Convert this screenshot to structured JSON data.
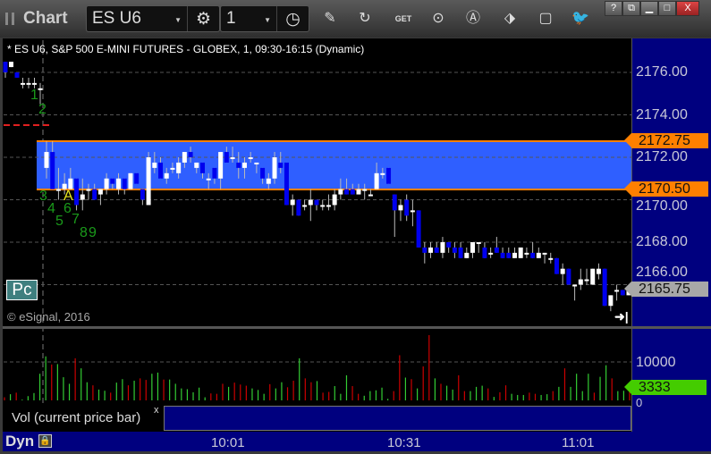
{
  "window": {
    "title": "Chart",
    "symbol": "ES U6",
    "interval": "1",
    "controls": [
      "?",
      "restore",
      "minimize",
      "maximize",
      "close"
    ]
  },
  "toolbar": {
    "icons": [
      "settings-gear-icon",
      "clock-icon",
      "pencil-icon",
      "refresh-icon",
      "get-icon",
      "play-icon",
      "alert-icon",
      "link-icon",
      "comment-icon",
      "twitter-icon"
    ]
  },
  "chart": {
    "header": "* ES U6, S&P 500 E-MINI FUTURES - GLOBEX, 1, 09:30-16:15 (Dynamic)",
    "price_labels": [
      "2176.00",
      "2174.00",
      "2172.00",
      "2170.00",
      "2168.00",
      "2166.00"
    ],
    "tags": {
      "upper": "2172.75",
      "lower": "2170.50",
      "last": "2165.75"
    },
    "colors": {
      "up": "#ffffff",
      "down": "#0000ee",
      "band": "#2f5fff",
      "band_line": "#ff8000",
      "vol_up": "#33cc33",
      "vol_down": "#cc0000",
      "axis": "#00007f"
    },
    "pc_label": "Pc",
    "copyright": "© eSignal, 2016",
    "tpo_letters": [
      "1",
      "2",
      "3",
      "4",
      "5",
      "6",
      "7",
      "8",
      "9",
      "A"
    ],
    "candles_pre": [
      [
        2176.5,
        2176.5,
        2175.75,
        2176
      ],
      [
        2176.25,
        2176.5,
        2176.25,
        2176.5
      ],
      [
        2176,
        2176,
        2175.75,
        2175.75
      ],
      [
        2175.5,
        2175.75,
        2175.25,
        2175.5
      ],
      [
        2175.5,
        2175.75,
        2175.25,
        2175.5
      ],
      [
        2175.5,
        2175.75,
        2175.25,
        2175.5
      ],
      [
        2175.25,
        2175.5,
        2174.5,
        2175.25
      ]
    ],
    "candles": [
      [
        2171.5,
        2172.75,
        2171,
        2172.25
      ],
      [
        2172.25,
        2172.75,
        2170.5,
        2170.5
      ],
      [
        2170.5,
        2171.5,
        2170,
        2170.5
      ],
      [
        2170.5,
        2171.25,
        2170.25,
        2170.75
      ],
      [
        2170.5,
        2171.5,
        2170.5,
        2171
      ],
      [
        2171,
        2171,
        2169.5,
        2169.75
      ],
      [
        2170,
        2171,
        2169.5,
        2170.25
      ],
      [
        2170.5,
        2170.75,
        2170,
        2170.5
      ],
      [
        2170.5,
        2170.75,
        2170,
        2170
      ],
      [
        2170.25,
        2170.5,
        2169.75,
        2170.5
      ],
      [
        2170.5,
        2171.25,
        2170.25,
        2171
      ],
      [
        2171,
        2171,
        2170.5,
        2170.75
      ],
      [
        2170.5,
        2171.25,
        2170.25,
        2171
      ],
      [
        2171,
        2171,
        2170.25,
        2170.5
      ],
      [
        2170.5,
        2171.25,
        2170.5,
        2171.25
      ],
      [
        2171.25,
        2171.25,
        2170.75,
        2170.75
      ],
      [
        2170.5,
        2170.5,
        2169.75,
        2170
      ],
      [
        2169.75,
        2172.25,
        2169.75,
        2172
      ],
      [
        2171.5,
        2172.25,
        2171.25,
        2171.75
      ],
      [
        2171.75,
        2172,
        2171,
        2171
      ],
      [
        2171,
        2171.5,
        2170.75,
        2171.25
      ],
      [
        2171.5,
        2171.75,
        2171.25,
        2171.5
      ],
      [
        2171.25,
        2172,
        2171,
        2171.75
      ],
      [
        2171.75,
        2172.25,
        2171.5,
        2172.25
      ],
      [
        2172.25,
        2172.5,
        2171.75,
        2172
      ],
      [
        2171.5,
        2171.75,
        2171.25,
        2171.75
      ],
      [
        2171.75,
        2171.75,
        2171,
        2171.25
      ],
      [
        2171,
        2171.25,
        2170.5,
        2171
      ],
      [
        2171.5,
        2171.5,
        2170.75,
        2171
      ],
      [
        2171,
        2172.25,
        2170.5,
        2172.25
      ],
      [
        2172.25,
        2172.5,
        2171.75,
        2171.75
      ],
      [
        2172,
        2172.5,
        2171.75,
        2172
      ],
      [
        2171.75,
        2172.25,
        2171,
        2171.5
      ],
      [
        2171.5,
        2172,
        2171,
        2171.75
      ],
      [
        2172,
        2172.25,
        2171.75,
        2172
      ],
      [
        2171.75,
        2171.75,
        2171.25,
        2171.75
      ],
      [
        2171.5,
        2171.5,
        2170.75,
        2171
      ],
      [
        2170.75,
        2171.25,
        2170.5,
        2171
      ],
      [
        2171,
        2172.25,
        2170.75,
        2172
      ],
      [
        2171.75,
        2172.25,
        2171.25,
        2171.5
      ],
      [
        2171.75,
        2171.75,
        2169.75,
        2169.75
      ],
      [
        2169.75,
        2170.25,
        2169.25,
        2170
      ],
      [
        2170,
        2170,
        2169.25,
        2169.25
      ],
      [
        2169.75,
        2170,
        2169.5,
        2169.75
      ],
      [
        2169.75,
        2170.5,
        2169,
        2170
      ],
      [
        2170,
        2170,
        2169.5,
        2169.75
      ],
      [
        2169.75,
        2170,
        2169.5,
        2169.75
      ],
      [
        2169.75,
        2170.25,
        2169.5,
        2169.75
      ],
      [
        2169.75,
        2170.5,
        2169.5,
        2170.25
      ],
      [
        2170.25,
        2171,
        2170,
        2170.5
      ],
      [
        2170.5,
        2171,
        2170.25,
        2170.25
      ],
      [
        2170.5,
        2170.75,
        2170.25,
        2170.25
      ],
      [
        2170.25,
        2170.75,
        2170.25,
        2170.5
      ],
      [
        2170.5,
        2170.75,
        2170,
        2170.5
      ],
      [
        2170.25,
        2170.5,
        2170.25,
        2170.25
      ],
      [
        2170.5,
        2171.75,
        2170.5,
        2171.25
      ],
      [
        2171.25,
        2171.5,
        2171,
        2171.25
      ],
      [
        2171.5,
        2171.5,
        2170.75,
        2170.75
      ],
      [
        2170.25,
        2170.25,
        2168.25,
        2169.5
      ],
      [
        2169.5,
        2170,
        2169,
        2169.75
      ],
      [
        2170,
        2170.25,
        2169,
        2169.25
      ],
      [
        2169.5,
        2170,
        2168.75,
        2169.5
      ],
      [
        2169.5,
        2169.5,
        2167.75,
        2167.75
      ],
      [
        2167.75,
        2168,
        2167,
        2167.5
      ],
      [
        2167.5,
        2168,
        2167.25,
        2167.75
      ],
      [
        2167.75,
        2168,
        2167.5,
        2167.5
      ],
      [
        2167.5,
        2168.25,
        2167.25,
        2168
      ],
      [
        2168,
        2168,
        2167.5,
        2167.75
      ],
      [
        2167.75,
        2168,
        2167.25,
        2167.5
      ],
      [
        2167.75,
        2168,
        2167.25,
        2167.25
      ],
      [
        2167.25,
        2167.75,
        2167.25,
        2167.5
      ],
      [
        2167.5,
        2168,
        2167.25,
        2168
      ],
      [
        2168,
        2168,
        2167.5,
        2168
      ],
      [
        2167.75,
        2168,
        2167.25,
        2167.25
      ],
      [
        2167.5,
        2167.75,
        2167.25,
        2167.5
      ],
      [
        2167.75,
        2168.25,
        2167.5,
        2167.5
      ],
      [
        2167.5,
        2167.75,
        2167.25,
        2167.25
      ],
      [
        2167.5,
        2167.75,
        2167.25,
        2167.25
      ],
      [
        2167.25,
        2167.75,
        2167.25,
        2167.5
      ],
      [
        2167.25,
        2167.75,
        2167.25,
        2167.75
      ],
      [
        2167.5,
        2167.75,
        2167.25,
        2167.5
      ],
      [
        2167.5,
        2168,
        2167.25,
        2167.25
      ],
      [
        2167.25,
        2167.75,
        2167.25,
        2167.5
      ],
      [
        2167.5,
        2167.5,
        2167,
        2167.5
      ],
      [
        2167.25,
        2167.5,
        2167,
        2167.25
      ],
      [
        2167.25,
        2167.25,
        2166.5,
        2166.5
      ],
      [
        2166.5,
        2167,
        2166,
        2166.75
      ],
      [
        2166.75,
        2166.75,
        2166,
        2166
      ],
      [
        2166,
        2166,
        2165.25,
        2166
      ],
      [
        2166,
        2166.75,
        2165.75,
        2166.25
      ],
      [
        2166.25,
        2166.75,
        2166,
        2166.25
      ],
      [
        2166,
        2166.75,
        2166,
        2166.75
      ],
      [
        2166.5,
        2167,
        2166.25,
        2166.75
      ],
      [
        2166.75,
        2166.75,
        2165,
        2165
      ],
      [
        2165,
        2165.5,
        2164.75,
        2165.5
      ],
      [
        2165.75,
        2166,
        2165.25,
        2165.75
      ],
      [
        2165.75,
        2165.75,
        2165.5,
        2165.5
      ],
      [
        2165.5,
        2165.75,
        2165.5,
        2165.75
      ]
    ]
  },
  "volume": {
    "legend": "Vol (current price bar)",
    "close_label": "x",
    "labels": [
      "10000",
      "0"
    ],
    "current": "3333",
    "up": [
      0,
      1,
      0,
      1,
      1,
      1,
      1,
      1,
      0,
      1,
      1,
      1,
      0,
      1,
      1,
      0,
      1,
      1,
      0,
      1,
      1,
      0,
      1,
      0,
      0,
      1,
      1,
      0,
      1,
      1,
      1,
      1,
      1,
      1,
      1,
      0,
      0,
      0,
      1,
      0,
      0,
      0,
      1,
      1,
      1,
      0,
      1,
      1,
      0,
      0,
      1,
      0,
      0,
      1,
      0,
      0,
      1,
      1,
      1,
      0,
      0,
      1,
      1,
      1,
      1,
      1,
      0,
      0,
      1,
      0,
      1,
      0,
      0,
      1,
      0,
      1,
      1,
      0,
      0,
      1,
      1,
      1,
      0,
      1,
      0,
      0,
      1,
      1,
      1,
      0,
      0,
      1,
      1,
      0,
      1,
      0,
      1,
      1,
      1,
      1,
      0,
      1,
      1,
      0,
      1,
      1,
      0
    ],
    "values": [
      800,
      1600,
      2000,
      200,
      1100,
      1900,
      6900,
      11400,
      9300,
      9400,
      6000,
      4300,
      10900,
      8300,
      4700,
      3900,
      2800,
      2500,
      2000,
      4600,
      5500,
      3900,
      5100,
      5700,
      5300,
      6900,
      7200,
      5400,
      5400,
      4300,
      3100,
      2900,
      2100,
      3300,
      800,
      1800,
      1700,
      4300,
      3500,
      4600,
      4100,
      3800,
      3100,
      2700,
      1700,
      4200,
      3100,
      4700,
      3400,
      5100,
      10900,
      5700,
      4700,
      5000,
      2000,
      2200,
      3700,
      1700,
      6500,
      3700,
      1700,
      1200,
      2400,
      2600,
      3300,
      400,
      2400,
      11700,
      5900,
      5500,
      3100,
      8800,
      16900,
      5700,
      4300,
      3800,
      2800,
      6500,
      2400,
      2400,
      3500,
      3800,
      3100,
      900,
      2100,
      3900,
      1700,
      1400,
      1400,
      2000,
      1700,
      1400,
      1600,
      2400,
      3500,
      8300,
      3500,
      6900,
      2400,
      6900,
      2000,
      6100,
      9100,
      5700,
      2400,
      2500,
      3333
    ]
  },
  "time_axis": {
    "labels": [
      "10:01",
      "10:31",
      "11:01"
    ],
    "mode": "Dyn"
  }
}
